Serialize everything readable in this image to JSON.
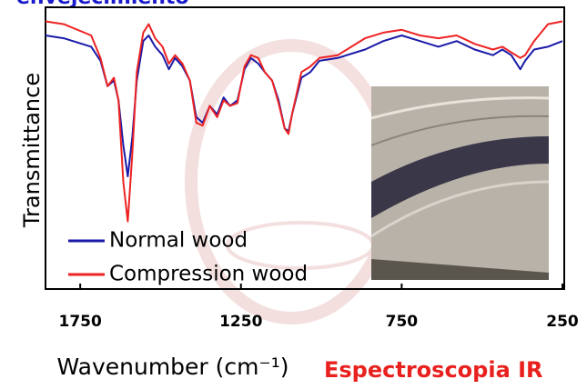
{
  "chart_data": {
    "type": "line",
    "title": "envejecimiento",
    "x_label": "Wavenumber (cm⁻¹)",
    "y_label": "Transmittance",
    "annotation": "Espectroscopia IR",
    "x": [
      1858,
      1801,
      1716,
      1687,
      1665,
      1645,
      1631,
      1616,
      1602,
      1588,
      1574,
      1554,
      1537,
      1517,
      1494,
      1474,
      1455,
      1432,
      1409,
      1389,
      1369,
      1347,
      1324,
      1304,
      1284,
      1261,
      1239,
      1219,
      1196,
      1176,
      1153,
      1133,
      1114,
      1102,
      1091,
      1062,
      1034,
      1006,
      949,
      864,
      807,
      750,
      693,
      636,
      579,
      523,
      466,
      437,
      409,
      381,
      366,
      338,
      295,
      250
    ],
    "series": [
      {
        "name": "Normal wood",
        "color": "#1a1aa8",
        "values": [
          90,
          89,
          86,
          81,
          72,
          74,
          67,
          51,
          40,
          54,
          74,
          88,
          90,
          86,
          83,
          78,
          82,
          79,
          74,
          61,
          59,
          65,
          62,
          68,
          65,
          67,
          78,
          82,
          80,
          77,
          74,
          67,
          57,
          56,
          62,
          75,
          77,
          81,
          82,
          85,
          88,
          90,
          88,
          86,
          88,
          85,
          83,
          85,
          83,
          78,
          81,
          85,
          86,
          88
        ]
      },
      {
        "name": "Compression wood",
        "color": "#ee2222",
        "values": [
          95,
          94,
          90,
          82,
          72,
          75,
          67,
          38,
          24,
          48,
          77,
          91,
          94,
          89,
          86,
          80,
          83,
          80,
          74,
          59,
          58,
          65,
          61,
          67,
          65,
          66,
          79,
          83,
          82,
          77,
          74,
          66,
          57,
          55,
          62,
          77,
          79,
          82,
          83,
          89,
          91,
          92,
          90,
          89,
          90,
          87,
          85,
          86,
          84,
          82,
          83,
          88,
          94,
          95
        ]
      }
    ],
    "xlim": [
      1858,
      250
    ],
    "xticks": [
      1750,
      1250,
      750,
      250
    ],
    "ylim": [
      0,
      100
    ]
  }
}
